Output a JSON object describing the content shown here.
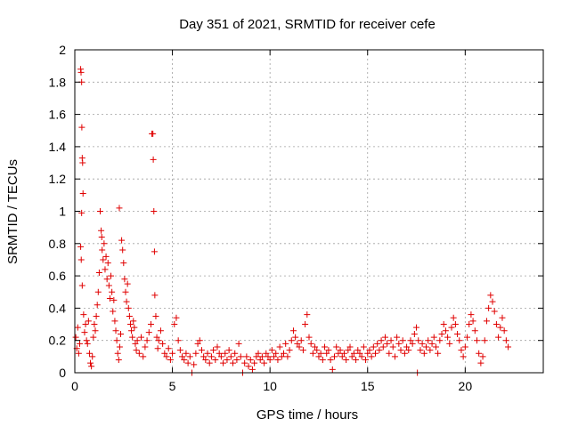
{
  "chart_data": {
    "type": "scatter",
    "title": "Day 351 of 2021, SRMTID for receiver cefe",
    "xlabel": "GPS time / hours",
    "ylabel": "SRMTID / TECUs",
    "xlim": [
      0,
      24
    ],
    "ylim": [
      0,
      2
    ],
    "x_ticks": [
      0,
      5,
      10,
      15,
      20
    ],
    "y_ticks": [
      0,
      0.2,
      0.4,
      0.6,
      0.8,
      1,
      1.2,
      1.4,
      1.6,
      1.8,
      2
    ],
    "x_tick_labels": [
      "0",
      "5",
      "10",
      "15",
      "20"
    ],
    "y_tick_labels": [
      "0",
      "0.2",
      "0.4",
      "0.6",
      "0.8",
      "1",
      "1.2",
      "1.4",
      "1.6",
      "1.8",
      "2"
    ],
    "grid": true,
    "marker": "+",
    "color": "#e00000",
    "series": [
      {
        "name": "SRMTID",
        "points": [
          [
            0.05,
            0.22
          ],
          [
            0.1,
            0.15
          ],
          [
            0.15,
            0.28
          ],
          [
            0.2,
            0.12
          ],
          [
            0.25,
            0.18
          ],
          [
            0.3,
            1.88
          ],
          [
            0.32,
            1.86
          ],
          [
            0.35,
            1.8
          ],
          [
            0.36,
            1.52
          ],
          [
            0.38,
            1.33
          ],
          [
            0.4,
            1.3
          ],
          [
            0.42,
            1.11
          ],
          [
            0.35,
            0.99
          ],
          [
            0.3,
            0.78
          ],
          [
            0.33,
            0.7
          ],
          [
            0.38,
            0.54
          ],
          [
            0.45,
            0.36
          ],
          [
            0.5,
            0.25
          ],
          [
            0.55,
            0.3
          ],
          [
            0.6,
            0.2
          ],
          [
            0.65,
            0.18
          ],
          [
            0.7,
            0.32
          ],
          [
            0.75,
            0.12
          ],
          [
            0.8,
            0.06
          ],
          [
            0.85,
            0.04
          ],
          [
            0.9,
            0.1
          ],
          [
            0.95,
            0.22
          ],
          [
            1.0,
            0.3
          ],
          [
            1.05,
            0.26
          ],
          [
            1.1,
            0.35
          ],
          [
            1.15,
            0.42
          ],
          [
            1.2,
            0.5
          ],
          [
            1.25,
            0.62
          ],
          [
            1.3,
            1.0
          ],
          [
            1.35,
            0.88
          ],
          [
            1.38,
            0.84
          ],
          [
            1.4,
            0.76
          ],
          [
            1.45,
            0.7
          ],
          [
            1.5,
            0.8
          ],
          [
            1.55,
            0.64
          ],
          [
            1.6,
            0.72
          ],
          [
            1.65,
            0.58
          ],
          [
            1.7,
            0.68
          ],
          [
            1.75,
            0.54
          ],
          [
            1.8,
            0.46
          ],
          [
            1.85,
            0.6
          ],
          [
            1.9,
            0.5
          ],
          [
            1.95,
            0.38
          ],
          [
            2.0,
            0.45
          ],
          [
            2.05,
            0.32
          ],
          [
            2.1,
            0.26
          ],
          [
            2.15,
            0.2
          ],
          [
            2.2,
            0.12
          ],
          [
            2.25,
            0.08
          ],
          [
            2.28,
            1.02
          ],
          [
            2.3,
            0.16
          ],
          [
            2.35,
            0.24
          ],
          [
            2.4,
            0.82
          ],
          [
            2.45,
            0.76
          ],
          [
            2.5,
            0.68
          ],
          [
            2.55,
            0.58
          ],
          [
            2.6,
            0.5
          ],
          [
            2.65,
            0.44
          ],
          [
            2.7,
            0.55
          ],
          [
            2.75,
            0.4
          ],
          [
            2.8,
            0.35
          ],
          [
            2.85,
            0.3
          ],
          [
            2.9,
            0.26
          ],
          [
            2.95,
            0.22
          ],
          [
            3.0,
            0.32
          ],
          [
            3.05,
            0.28
          ],
          [
            3.1,
            0.18
          ],
          [
            3.15,
            0.14
          ],
          [
            3.2,
            0.2
          ],
          [
            3.3,
            0.12
          ],
          [
            3.4,
            0.22
          ],
          [
            3.5,
            0.1
          ],
          [
            3.6,
            0.16
          ],
          [
            3.7,
            0.2
          ],
          [
            3.8,
            0.25
          ],
          [
            3.9,
            0.3
          ],
          [
            3.95,
            1.48
          ],
          [
            4.0,
            1.48
          ],
          [
            4.02,
            1.32
          ],
          [
            4.05,
            1.0
          ],
          [
            4.08,
            0.75
          ],
          [
            4.1,
            0.48
          ],
          [
            4.15,
            0.35
          ],
          [
            4.2,
            0.22
          ],
          [
            4.25,
            0.15
          ],
          [
            4.3,
            0.2
          ],
          [
            4.4,
            0.26
          ],
          [
            4.5,
            0.18
          ],
          [
            4.6,
            0.12
          ],
          [
            4.7,
            0.1
          ],
          [
            4.8,
            0.15
          ],
          [
            4.9,
            0.08
          ],
          [
            5.0,
            0.12
          ],
          [
            5.1,
            0.3
          ],
          [
            5.2,
            0.34
          ],
          [
            5.3,
            0.2
          ],
          [
            5.4,
            0.14
          ],
          [
            5.5,
            0.1
          ],
          [
            5.6,
            0.08
          ],
          [
            5.7,
            0.12
          ],
          [
            5.8,
            0.06
          ],
          [
            5.9,
            0.1
          ],
          [
            6.0,
            0.0
          ],
          [
            6.1,
            0.05
          ],
          [
            6.2,
            0.12
          ],
          [
            6.3,
            0.18
          ],
          [
            6.4,
            0.2
          ],
          [
            6.5,
            0.14
          ],
          [
            6.6,
            0.1
          ],
          [
            6.7,
            0.08
          ],
          [
            6.8,
            0.12
          ],
          [
            6.9,
            0.06
          ],
          [
            7.0,
            0.1
          ],
          [
            7.1,
            0.14
          ],
          [
            7.2,
            0.08
          ],
          [
            7.3,
            0.16
          ],
          [
            7.4,
            0.12
          ],
          [
            7.5,
            0.1
          ],
          [
            7.6,
            0.06
          ],
          [
            7.7,
            0.12
          ],
          [
            7.8,
            0.08
          ],
          [
            7.9,
            0.14
          ],
          [
            8.0,
            0.1
          ],
          [
            8.1,
            0.06
          ],
          [
            8.2,
            0.12
          ],
          [
            8.3,
            0.08
          ],
          [
            8.4,
            0.18
          ],
          [
            8.5,
            0.1
          ],
          [
            8.6,
            0.0
          ],
          [
            8.7,
            0.06
          ],
          [
            8.8,
            0.1
          ],
          [
            8.9,
            0.04
          ],
          [
            9.0,
            0.08
          ],
          [
            9.1,
            0.02
          ],
          [
            9.2,
            0.06
          ],
          [
            9.3,
            0.1
          ],
          [
            9.4,
            0.12
          ],
          [
            9.5,
            0.08
          ],
          [
            9.6,
            0.1
          ],
          [
            9.7,
            0.06
          ],
          [
            9.8,
            0.12
          ],
          [
            9.9,
            0.1
          ],
          [
            10.0,
            0.08
          ],
          [
            10.1,
            0.14
          ],
          [
            10.2,
            0.1
          ],
          [
            10.3,
            0.12
          ],
          [
            10.4,
            0.08
          ],
          [
            10.5,
            0.16
          ],
          [
            10.6,
            0.1
          ],
          [
            10.7,
            0.12
          ],
          [
            10.8,
            0.18
          ],
          [
            10.9,
            0.1
          ],
          [
            11.0,
            0.14
          ],
          [
            11.1,
            0.2
          ],
          [
            11.2,
            0.26
          ],
          [
            11.3,
            0.22
          ],
          [
            11.4,
            0.18
          ],
          [
            11.5,
            0.16
          ],
          [
            11.6,
            0.2
          ],
          [
            11.7,
            0.14
          ],
          [
            11.8,
            0.3
          ],
          [
            11.9,
            0.36
          ],
          [
            12.0,
            0.22
          ],
          [
            12.1,
            0.18
          ],
          [
            12.2,
            0.12
          ],
          [
            12.3,
            0.16
          ],
          [
            12.4,
            0.14
          ],
          [
            12.5,
            0.1
          ],
          [
            12.6,
            0.12
          ],
          [
            12.7,
            0.08
          ],
          [
            12.8,
            0.16
          ],
          [
            12.9,
            0.12
          ],
          [
            13.0,
            0.14
          ],
          [
            13.1,
            0.08
          ],
          [
            13.2,
            0.02
          ],
          [
            13.3,
            0.1
          ],
          [
            13.4,
            0.16
          ],
          [
            13.5,
            0.12
          ],
          [
            13.6,
            0.14
          ],
          [
            13.7,
            0.1
          ],
          [
            13.8,
            0.12
          ],
          [
            13.9,
            0.08
          ],
          [
            14.0,
            0.14
          ],
          [
            14.1,
            0.16
          ],
          [
            14.2,
            0.1
          ],
          [
            14.3,
            0.12
          ],
          [
            14.4,
            0.08
          ],
          [
            14.5,
            0.14
          ],
          [
            14.6,
            0.12
          ],
          [
            14.7,
            0.1
          ],
          [
            14.8,
            0.16
          ],
          [
            14.9,
            0.08
          ],
          [
            15.0,
            0.12
          ],
          [
            15.1,
            0.14
          ],
          [
            15.2,
            0.1
          ],
          [
            15.3,
            0.16
          ],
          [
            15.4,
            0.12
          ],
          [
            15.5,
            0.18
          ],
          [
            15.6,
            0.14
          ],
          [
            15.7,
            0.2
          ],
          [
            15.8,
            0.16
          ],
          [
            15.9,
            0.22
          ],
          [
            16.0,
            0.18
          ],
          [
            16.1,
            0.12
          ],
          [
            16.2,
            0.2
          ],
          [
            16.3,
            0.16
          ],
          [
            16.4,
            0.1
          ],
          [
            16.5,
            0.22
          ],
          [
            16.6,
            0.18
          ],
          [
            16.7,
            0.14
          ],
          [
            16.8,
            0.2
          ],
          [
            16.9,
            0.12
          ],
          [
            17.0,
            0.16
          ],
          [
            17.1,
            0.14
          ],
          [
            17.2,
            0.2
          ],
          [
            17.3,
            0.18
          ],
          [
            17.4,
            0.24
          ],
          [
            17.5,
            0.28
          ],
          [
            17.55,
            0.0
          ],
          [
            17.6,
            0.2
          ],
          [
            17.7,
            0.14
          ],
          [
            17.8,
            0.18
          ],
          [
            17.9,
            0.12
          ],
          [
            18.0,
            0.16
          ],
          [
            18.1,
            0.2
          ],
          [
            18.2,
            0.14
          ],
          [
            18.3,
            0.18
          ],
          [
            18.4,
            0.22
          ],
          [
            18.5,
            0.16
          ],
          [
            18.6,
            0.12
          ],
          [
            18.7,
            0.2
          ],
          [
            18.8,
            0.24
          ],
          [
            18.9,
            0.3
          ],
          [
            19.0,
            0.26
          ],
          [
            19.1,
            0.22
          ],
          [
            19.2,
            0.18
          ],
          [
            19.3,
            0.28
          ],
          [
            19.4,
            0.34
          ],
          [
            19.5,
            0.3
          ],
          [
            19.6,
            0.24
          ],
          [
            19.7,
            0.2
          ],
          [
            19.8,
            0.14
          ],
          [
            19.9,
            0.1
          ],
          [
            20.0,
            0.16
          ],
          [
            20.1,
            0.22
          ],
          [
            20.2,
            0.3
          ],
          [
            20.3,
            0.36
          ],
          [
            20.4,
            0.32
          ],
          [
            20.5,
            0.26
          ],
          [
            20.6,
            0.2
          ],
          [
            20.7,
            0.12
          ],
          [
            20.8,
            0.06
          ],
          [
            20.9,
            0.1
          ],
          [
            21.0,
            0.2
          ],
          [
            21.1,
            0.32
          ],
          [
            21.2,
            0.4
          ],
          [
            21.3,
            0.48
          ],
          [
            21.4,
            0.44
          ],
          [
            21.5,
            0.38
          ],
          [
            21.6,
            0.3
          ],
          [
            21.7,
            0.22
          ],
          [
            21.8,
            0.28
          ],
          [
            21.9,
            0.34
          ],
          [
            22.0,
            0.26
          ],
          [
            22.1,
            0.2
          ],
          [
            22.2,
            0.16
          ]
        ]
      }
    ]
  }
}
